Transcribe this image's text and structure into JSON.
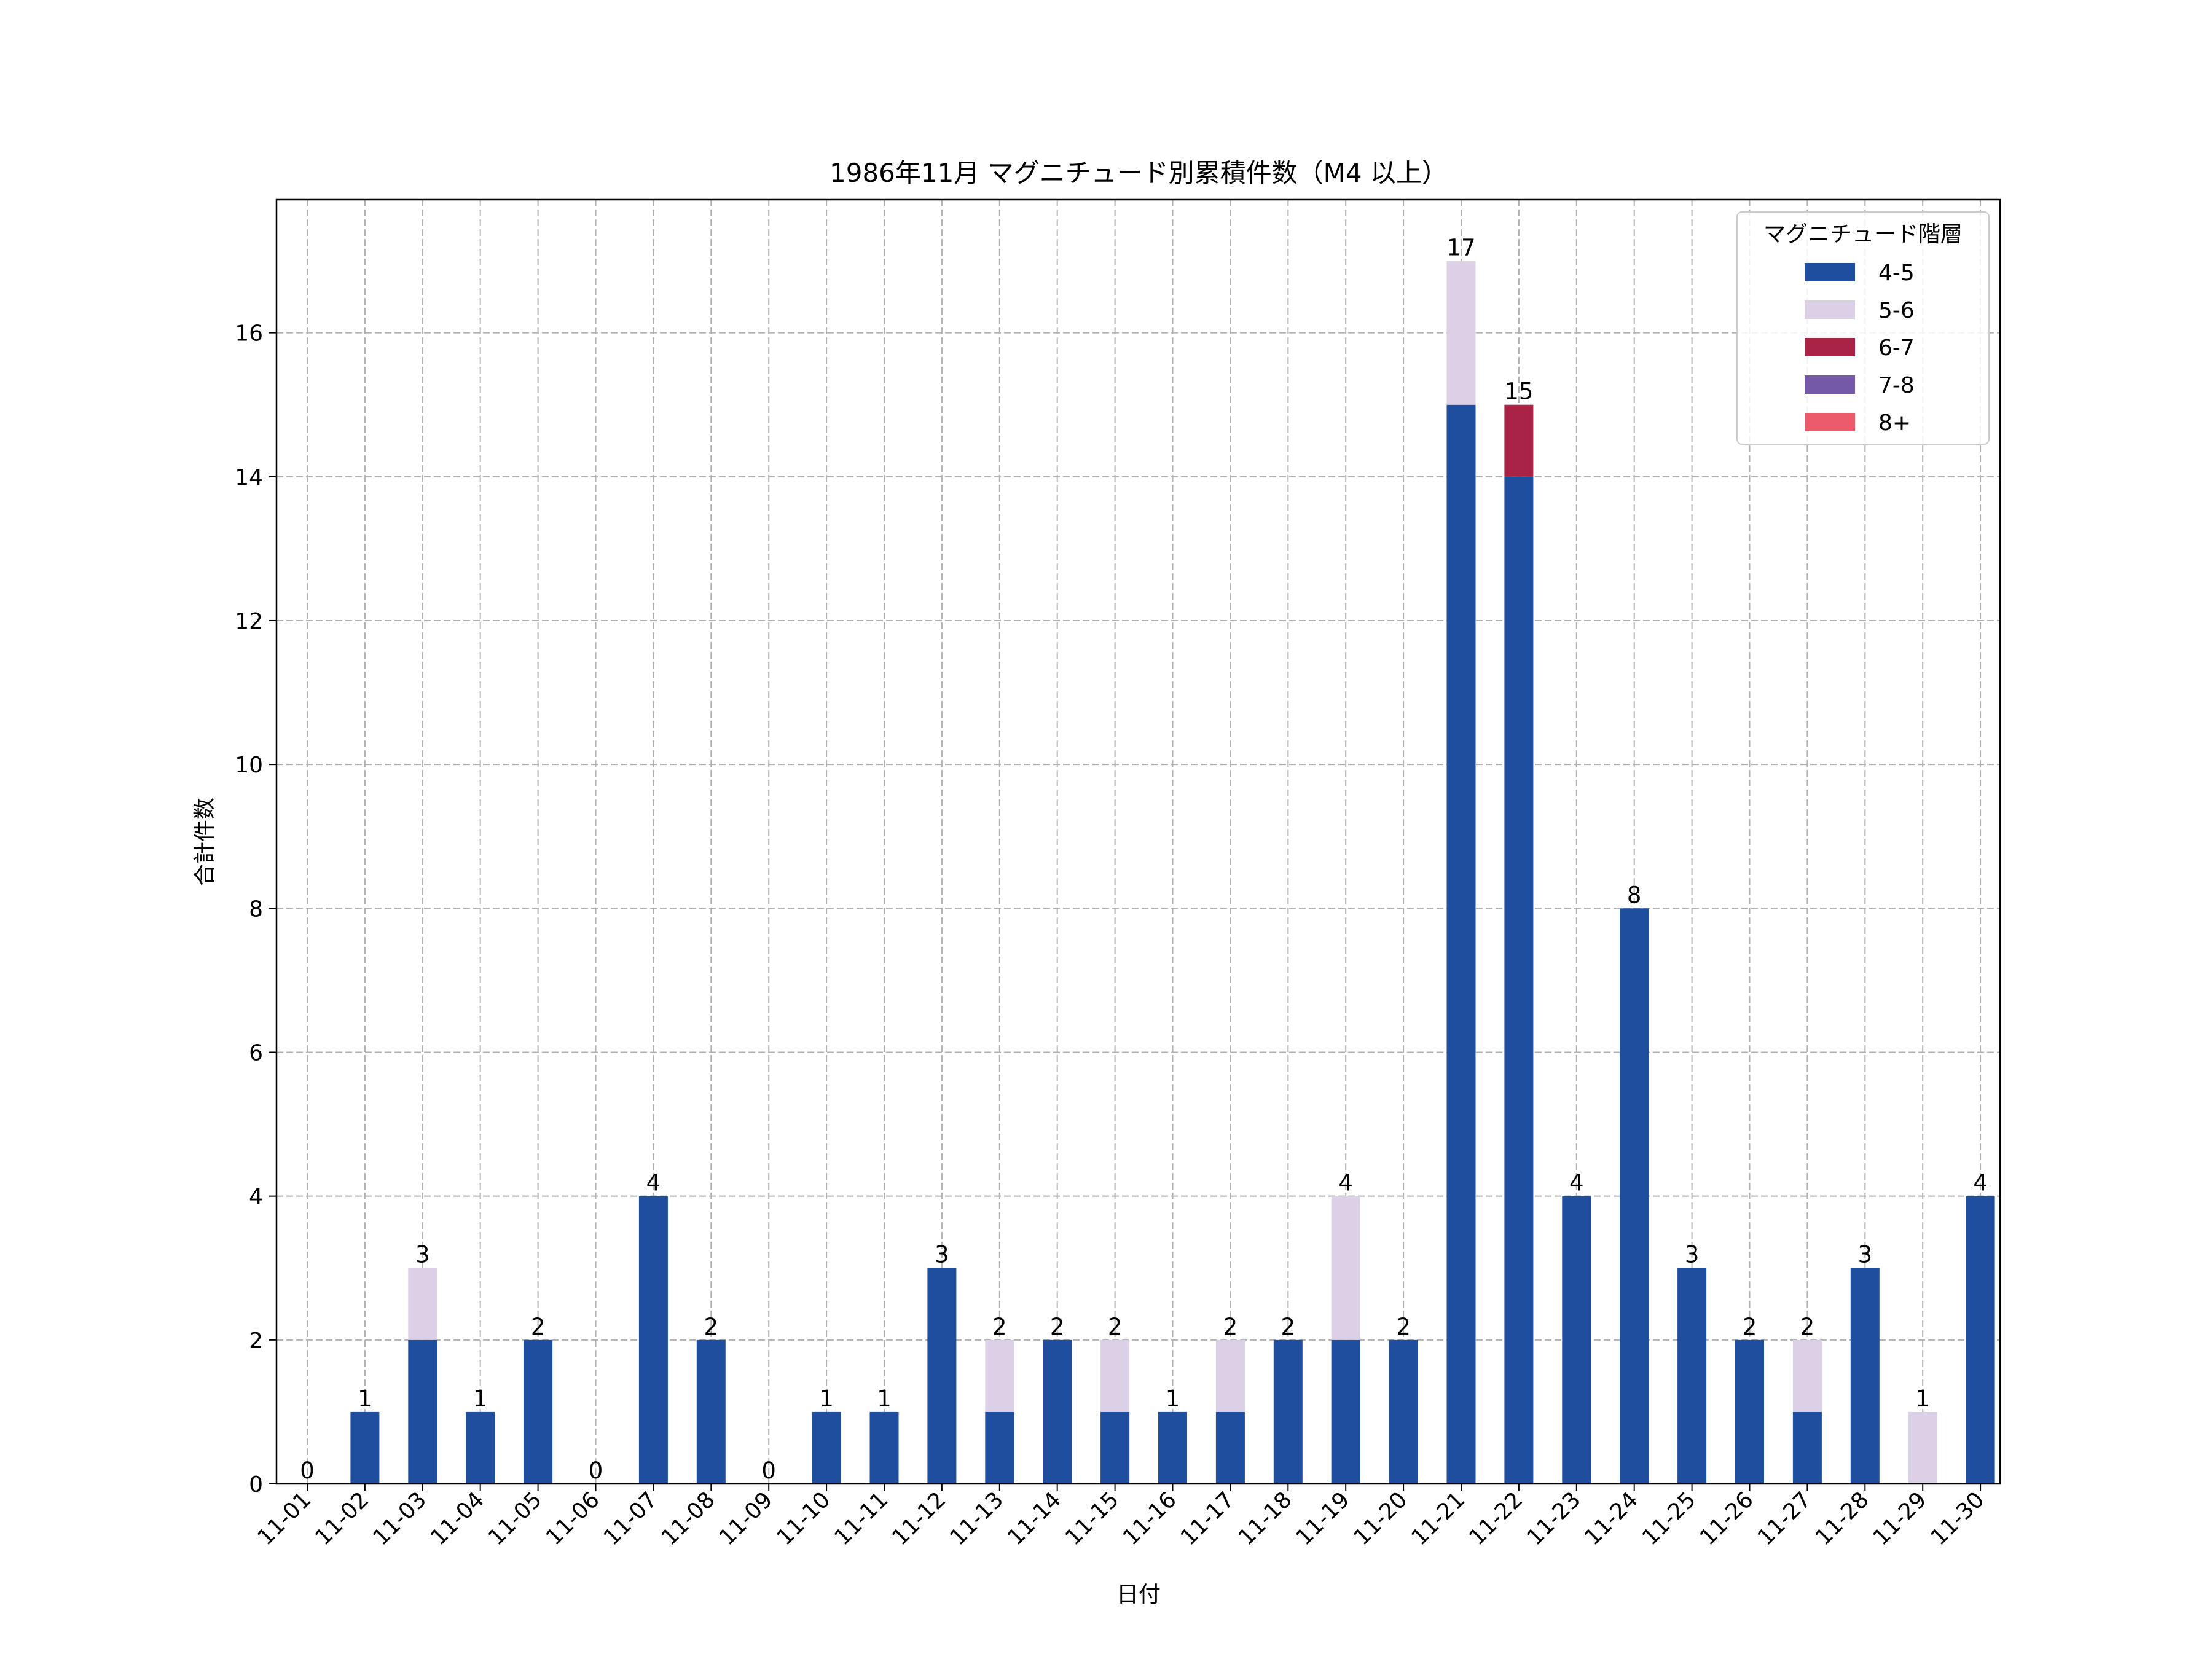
{
  "chart_data": {
    "type": "bar",
    "stacked": true,
    "title": "1986年11月 マグニチュード別累積件数（M4 以上）",
    "xlabel": "日付",
    "ylabel": "合計件数",
    "ylim": [
      0,
      17.85
    ],
    "yticks": [
      0,
      2,
      4,
      6,
      8,
      10,
      12,
      14,
      16
    ],
    "grid": true,
    "legend": {
      "title": "マグニチュード階層",
      "placement": "top-right"
    },
    "categories": [
      "11-01",
      "11-02",
      "11-03",
      "11-04",
      "11-05",
      "11-06",
      "11-07",
      "11-08",
      "11-09",
      "11-10",
      "11-11",
      "11-12",
      "11-13",
      "11-14",
      "11-15",
      "11-16",
      "11-17",
      "11-18",
      "11-19",
      "11-20",
      "11-21",
      "11-22",
      "11-23",
      "11-24",
      "11-25",
      "11-26",
      "11-27",
      "11-28",
      "11-29",
      "11-30"
    ],
    "series": [
      {
        "name": "4-5",
        "color": "#1f4e9e",
        "values": [
          0,
          1,
          2,
          1,
          2,
          0,
          4,
          2,
          0,
          1,
          1,
          3,
          1,
          2,
          1,
          1,
          1,
          2,
          2,
          2,
          15,
          14,
          4,
          8,
          3,
          2,
          1,
          3,
          0,
          4
        ]
      },
      {
        "name": "5-6",
        "color": "#dcd0e6",
        "values": [
          0,
          0,
          1,
          0,
          0,
          0,
          0,
          0,
          0,
          0,
          0,
          0,
          1,
          0,
          1,
          0,
          1,
          0,
          2,
          0,
          2,
          0,
          0,
          0,
          0,
          0,
          1,
          0,
          1,
          0
        ]
      },
      {
        "name": "6-7",
        "color": "#a82345",
        "values": [
          0,
          0,
          0,
          0,
          0,
          0,
          0,
          0,
          0,
          0,
          0,
          0,
          0,
          0,
          0,
          0,
          0,
          0,
          0,
          0,
          0,
          1,
          0,
          0,
          0,
          0,
          0,
          0,
          0,
          0
        ]
      },
      {
        "name": "7-8",
        "color": "#7459a8",
        "values": [
          0,
          0,
          0,
          0,
          0,
          0,
          0,
          0,
          0,
          0,
          0,
          0,
          0,
          0,
          0,
          0,
          0,
          0,
          0,
          0,
          0,
          0,
          0,
          0,
          0,
          0,
          0,
          0,
          0,
          0
        ]
      },
      {
        "name": "8+",
        "color": "#ec5b6b",
        "values": [
          0,
          0,
          0,
          0,
          0,
          0,
          0,
          0,
          0,
          0,
          0,
          0,
          0,
          0,
          0,
          0,
          0,
          0,
          0,
          0,
          0,
          0,
          0,
          0,
          0,
          0,
          0,
          0,
          0,
          0
        ]
      }
    ],
    "totals": [
      0,
      1,
      3,
      1,
      2,
      0,
      4,
      2,
      0,
      1,
      1,
      3,
      2,
      2,
      2,
      1,
      2,
      2,
      4,
      2,
      17,
      15,
      4,
      8,
      3,
      2,
      2,
      3,
      1,
      4
    ]
  }
}
